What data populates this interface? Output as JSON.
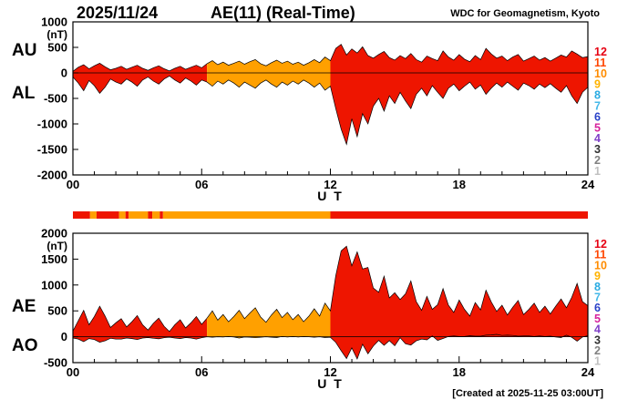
{
  "header": {
    "date": "2025/11/24",
    "title": "AE(11) (Real-Time)",
    "source": "WDC for Geomagnetism, Kyoto"
  },
  "footer": {
    "created": "[Created at 2025-11-25 03:00UT]"
  },
  "colors": {
    "red": "#ee1500",
    "orange": "#ffa000"
  },
  "activity_scale": {
    "levels": [
      {
        "level": "12",
        "color": "#e60012"
      },
      {
        "level": "11",
        "color": "#ff4500"
      },
      {
        "level": "10",
        "color": "#ff8c00"
      },
      {
        "level": "9",
        "color": "#ffb300"
      },
      {
        "level": "8",
        "color": "#29abe2"
      },
      {
        "level": "7",
        "color": "#45b8e8"
      },
      {
        "level": "6",
        "color": "#2840c8"
      },
      {
        "level": "5",
        "color": "#d6219c"
      },
      {
        "level": "4",
        "color": "#8040c8"
      },
      {
        "level": "3",
        "color": "#303030"
      },
      {
        "level": "2",
        "color": "#808080"
      },
      {
        "level": "1",
        "color": "#c0c0c0"
      }
    ]
  },
  "level_bar": {
    "segments": [
      {
        "start": 0,
        "end": 0.8,
        "color": "red"
      },
      {
        "start": 0.8,
        "end": 1.1,
        "color": "orange"
      },
      {
        "start": 1.1,
        "end": 2.15,
        "color": "red"
      },
      {
        "start": 2.15,
        "end": 2.45,
        "color": "orange"
      },
      {
        "start": 2.45,
        "end": 2.6,
        "color": "red"
      },
      {
        "start": 2.6,
        "end": 3.5,
        "color": "orange"
      },
      {
        "start": 3.5,
        "end": 3.7,
        "color": "red"
      },
      {
        "start": 3.7,
        "end": 4.05,
        "color": "orange"
      },
      {
        "start": 4.05,
        "end": 4.2,
        "color": "red"
      },
      {
        "start": 4.2,
        "end": 12,
        "color": "orange"
      },
      {
        "start": 12,
        "end": 24,
        "color": "red"
      }
    ]
  },
  "chart_data": [
    {
      "type": "area",
      "title": "AU / AL indices",
      "side_labels": [
        "AU",
        "AL"
      ],
      "unit": "(nT)",
      "xlabel": "U T",
      "xlim": [
        0,
        24
      ],
      "ylim": [
        -2000,
        1000
      ],
      "yticks": [
        1000,
        500,
        0,
        -500,
        -1000,
        -1500,
        -2000
      ],
      "xticks": [
        {
          "value": 0,
          "label": "00"
        },
        {
          "value": 6,
          "label": "06"
        },
        {
          "value": 12,
          "label": "12"
        },
        {
          "value": 18,
          "label": "18"
        },
        {
          "value": 24,
          "label": "24"
        }
      ],
      "x_step_hours": 0.25,
      "fill_segments": [
        {
          "start": 0,
          "end": 6.25,
          "color": "red"
        },
        {
          "start": 6.25,
          "end": 12,
          "color": "orange"
        },
        {
          "start": 12,
          "end": 24,
          "color": "red"
        }
      ],
      "series": [
        {
          "name": "AU",
          "values": [
            30,
            110,
            160,
            80,
            140,
            190,
            120,
            60,
            90,
            130,
            70,
            110,
            150,
            90,
            50,
            100,
            140,
            80,
            40,
            90,
            130,
            70,
            110,
            150,
            100,
            180,
            240,
            160,
            210,
            150,
            190,
            230,
            170,
            220,
            260,
            180,
            140,
            200,
            250,
            190,
            230,
            170,
            210,
            150,
            200,
            260,
            200,
            310,
            240,
            480,
            560,
            350,
            470,
            390,
            510,
            340,
            290,
            360,
            420,
            300,
            250,
            340,
            280,
            380,
            260,
            210,
            330,
            280,
            240,
            430,
            310,
            250,
            360,
            270,
            220,
            340,
            260,
            480,
            370,
            290,
            330,
            240,
            310,
            360,
            230,
            280,
            330,
            250,
            300,
            230,
            290,
            350,
            310,
            430,
            370,
            300,
            320
          ]
        },
        {
          "name": "AL",
          "values": [
            -80,
            -200,
            -350,
            -150,
            -250,
            -400,
            -280,
            -120,
            -180,
            -220,
            -120,
            -180,
            -260,
            -140,
            -80,
            -160,
            -220,
            -120,
            -60,
            -140,
            -200,
            -100,
            -160,
            -240,
            -140,
            -180,
            -260,
            -160,
            -220,
            -140,
            -200,
            -280,
            -180,
            -240,
            -300,
            -200,
            -140,
            -220,
            -280,
            -180,
            -240,
            -160,
            -220,
            -140,
            -200,
            -280,
            -200,
            -340,
            -260,
            -700,
            -1100,
            -1400,
            -900,
            -1250,
            -800,
            -1000,
            -650,
            -500,
            -750,
            -450,
            -600,
            -380,
            -550,
            -700,
            -420,
            -300,
            -450,
            -250,
            -380,
            -500,
            -300,
            -220,
            -350,
            -260,
            -180,
            -320,
            -240,
            -420,
            -300,
            -200,
            -280,
            -180,
            -260,
            -340,
            -200,
            -250,
            -320,
            -220,
            -290,
            -210,
            -300,
            -380,
            -250,
            -450,
            -600,
            -380,
            -280
          ]
        }
      ]
    },
    {
      "type": "area",
      "title": "AE / AO indices",
      "side_labels": [
        "AE",
        "AO"
      ],
      "unit": "(nT)",
      "xlabel": "U T",
      "xlim": [
        0,
        24
      ],
      "ylim": [
        -500,
        2000
      ],
      "yticks": [
        2000,
        1500,
        1000,
        500,
        0,
        -500
      ],
      "xticks": [
        {
          "value": 0,
          "label": "00"
        },
        {
          "value": 6,
          "label": "06"
        },
        {
          "value": 12,
          "label": "12"
        },
        {
          "value": 18,
          "label": "18"
        },
        {
          "value": 24,
          "label": "24"
        }
      ],
      "x_step_hours": 0.25,
      "fill_segments": [
        {
          "start": 0,
          "end": 6.25,
          "color": "red"
        },
        {
          "start": 6.25,
          "end": 12,
          "color": "orange"
        },
        {
          "start": 12,
          "end": 24,
          "color": "red"
        }
      ],
      "series": [
        {
          "name": "AE",
          "values": [
            110,
            310,
            510,
            230,
            390,
            590,
            400,
            180,
            270,
            350,
            190,
            290,
            410,
            230,
            130,
            260,
            360,
            200,
            100,
            230,
            330,
            170,
            270,
            390,
            240,
            360,
            500,
            320,
            430,
            290,
            390,
            510,
            350,
            460,
            560,
            380,
            280,
            420,
            530,
            370,
            470,
            330,
            430,
            290,
            400,
            540,
            400,
            650,
            500,
            1180,
            1660,
            1750,
            1370,
            1640,
            1310,
            1340,
            940,
            860,
            1170,
            750,
            850,
            720,
            830,
            1080,
            680,
            510,
            780,
            530,
            620,
            930,
            610,
            470,
            710,
            530,
            400,
            660,
            520,
            900,
            670,
            490,
            610,
            420,
            570,
            700,
            430,
            530,
            650,
            470,
            590,
            440,
            590,
            730,
            560,
            760,
            1030,
            680,
            600
          ]
        },
        {
          "name": "AO",
          "values": [
            -25,
            -45,
            -95,
            -35,
            -55,
            -105,
            -80,
            -30,
            -45,
            -45,
            -25,
            -35,
            -55,
            -25,
            -15,
            -30,
            -40,
            -20,
            -10,
            -25,
            -35,
            -15,
            -25,
            -45,
            -20,
            0,
            -10,
            0,
            -5,
            5,
            -5,
            -25,
            -5,
            -10,
            -20,
            -10,
            0,
            -10,
            -15,
            5,
            -5,
            5,
            -5,
            5,
            0,
            -10,
            0,
            -15,
            -10,
            -110,
            -270,
            -420,
            -215,
            -430,
            -145,
            -330,
            -180,
            -70,
            -165,
            -75,
            -175,
            -20,
            -135,
            -160,
            -80,
            -45,
            -60,
            15,
            -70,
            -35,
            5,
            15,
            5,
            5,
            20,
            10,
            10,
            30,
            35,
            45,
            25,
            30,
            25,
            10,
            15,
            15,
            5,
            15,
            5,
            10,
            -5,
            -15,
            30,
            -10,
            -85,
            -5,
            20
          ]
        }
      ]
    }
  ]
}
